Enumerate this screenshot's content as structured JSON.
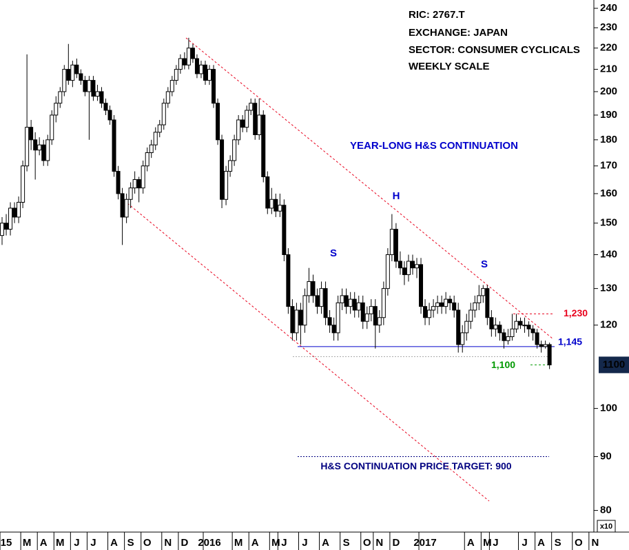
{
  "chart_data": {
    "type": "candlestick",
    "notes": [
      "RIC: 2767.T",
      "EXCHANGE: JAPAN",
      "SECTOR: CONSUMER CYCLICALS",
      "WEEKLY SCALE"
    ],
    "pattern_label": "YEAR-LONG H&S CONTINUATION",
    "head_label": "H",
    "shoulder_labels": [
      "S",
      "S"
    ],
    "scale_label": "x10",
    "log_scale": true,
    "ylim": [
      76.3,
      244.4
    ],
    "yticks": [
      80,
      90,
      100,
      120,
      130,
      140,
      150,
      160,
      170,
      180,
      190,
      200,
      210,
      220,
      230,
      240
    ],
    "last_price": {
      "value": 110,
      "label": "1100"
    },
    "levels": [
      {
        "value": 123,
        "label": "1,230",
        "color": "#e8001c"
      },
      {
        "value": 114.5,
        "label": "1,145",
        "color": "#0000cc"
      },
      {
        "value": 112,
        "color": "#aaaaaa"
      },
      {
        "value": 110,
        "label": "1,100",
        "color": "#009900"
      },
      {
        "value": 90,
        "label": "H&S CONTINUATION PRICE TARGET: 900",
        "color": "#000080"
      }
    ],
    "categories": [
      null,
      "15",
      null,
      null,
      null,
      null,
      "M",
      null,
      null,
      null,
      "A",
      null,
      null,
      null,
      "M",
      null,
      null,
      null,
      "J",
      null,
      null,
      null,
      "J",
      null,
      null,
      null,
      null,
      "A",
      null,
      null,
      null,
      "S",
      null,
      null,
      null,
      "O",
      null,
      null,
      null,
      null,
      "N",
      null,
      null,
      null,
      "D",
      null,
      null,
      null,
      null,
      null,
      "2016",
      null,
      null,
      null,
      null,
      null,
      null,
      "M",
      null,
      null,
      null,
      "A",
      null,
      null,
      null,
      null,
      "M",
      null,
      "J",
      null,
      null,
      null,
      null,
      "J",
      null,
      null,
      null,
      null,
      "A",
      null,
      null,
      null,
      null,
      "S",
      null,
      null,
      null,
      null,
      "O",
      null,
      null,
      "N",
      null,
      null,
      null,
      "D",
      null,
      null,
      null,
      null,
      null,
      null,
      "2017",
      null,
      null,
      null,
      null,
      null,
      null,
      null,
      null,
      null,
      null,
      "A",
      null,
      null,
      null,
      "M",
      null,
      "J",
      null,
      null,
      null,
      null,
      null,
      null,
      "J",
      null,
      null,
      null,
      "A",
      null,
      null,
      null,
      "S",
      null,
      null,
      null,
      null,
      "O",
      null,
      null,
      null,
      "N"
    ],
    "ohlc": [
      [
        146,
        152,
        143,
        150
      ],
      [
        150,
        153,
        146,
        148
      ],
      [
        148,
        157,
        146,
        155
      ],
      [
        155,
        157,
        150,
        152
      ],
      [
        152,
        159,
        150,
        157
      ],
      [
        157,
        172,
        155,
        170
      ],
      [
        170,
        217,
        168,
        185
      ],
      [
        185,
        188,
        176,
        180
      ],
      [
        180,
        183,
        165,
        176
      ],
      [
        176,
        181,
        174,
        178
      ],
      [
        178,
        180,
        170,
        172
      ],
      [
        172,
        182,
        170,
        180
      ],
      [
        180,
        192,
        178,
        190
      ],
      [
        190,
        198,
        187,
        195
      ],
      [
        195,
        202,
        193,
        200
      ],
      [
        200,
        212,
        198,
        210
      ],
      [
        210,
        222,
        203,
        205
      ],
      [
        205,
        214,
        202,
        212
      ],
      [
        212,
        215,
        206,
        208
      ],
      [
        208,
        210,
        203,
        205
      ],
      [
        205,
        207,
        198,
        200
      ],
      [
        200,
        207,
        180,
        205
      ],
      [
        205,
        207,
        196,
        198
      ],
      [
        198,
        203,
        196,
        200
      ],
      [
        200,
        202,
        193,
        195
      ],
      [
        195,
        197,
        190,
        192
      ],
      [
        192,
        194,
        186,
        188
      ],
      [
        188,
        190,
        166,
        168
      ],
      [
        168,
        170,
        158,
        160
      ],
      [
        160,
        162,
        143,
        152
      ],
      [
        152,
        160,
        150,
        158
      ],
      [
        158,
        164,
        155,
        162
      ],
      [
        162,
        168,
        160,
        165
      ],
      [
        165,
        166,
        157,
        162
      ],
      [
        162,
        172,
        160,
        170
      ],
      [
        170,
        177,
        168,
        175
      ],
      [
        175,
        180,
        173,
        178
      ],
      [
        178,
        185,
        176,
        183
      ],
      [
        183,
        188,
        181,
        186
      ],
      [
        186,
        197,
        184,
        195
      ],
      [
        195,
        202,
        193,
        200
      ],
      [
        200,
        207,
        198,
        205
      ],
      [
        205,
        212,
        203,
        210
      ],
      [
        210,
        217,
        208,
        215
      ],
      [
        215,
        218,
        210,
        212
      ],
      [
        212,
        225,
        210,
        220
      ],
      [
        220,
        222,
        213,
        215
      ],
      [
        215,
        217,
        206,
        208
      ],
      [
        208,
        214,
        206,
        212
      ],
      [
        212,
        214,
        203,
        205
      ],
      [
        205,
        212,
        203,
        210
      ],
      [
        210,
        212,
        193,
        195
      ],
      [
        195,
        197,
        178,
        180
      ],
      [
        180,
        182,
        155,
        158
      ],
      [
        158,
        170,
        156,
        168
      ],
      [
        168,
        174,
        166,
        172
      ],
      [
        172,
        182,
        170,
        180
      ],
      [
        180,
        190,
        178,
        188
      ],
      [
        188,
        190,
        183,
        185
      ],
      [
        185,
        194,
        183,
        192
      ],
      [
        192,
        197,
        190,
        195
      ],
      [
        195,
        197,
        180,
        182
      ],
      [
        182,
        197,
        180,
        190
      ],
      [
        190,
        192,
        164,
        166
      ],
      [
        166,
        168,
        153,
        155
      ],
      [
        155,
        162,
        153,
        158
      ],
      [
        158,
        160,
        152,
        154
      ],
      [
        154,
        160,
        152,
        156
      ],
      [
        156,
        158,
        138,
        140
      ],
      [
        140,
        142,
        123,
        125
      ],
      [
        125,
        127,
        116,
        118
      ],
      [
        118,
        126,
        116,
        124
      ],
      [
        124,
        126,
        115,
        120
      ],
      [
        120,
        130,
        118,
        128
      ],
      [
        128,
        136,
        126,
        132
      ],
      [
        132,
        134,
        126,
        128
      ],
      [
        128,
        130,
        123,
        125
      ],
      [
        125,
        132,
        123,
        130
      ],
      [
        130,
        132,
        120,
        122
      ],
      [
        122,
        124,
        118,
        120
      ],
      [
        120,
        122,
        116,
        118
      ],
      [
        118,
        128,
        116,
        126
      ],
      [
        126,
        130,
        124,
        128
      ],
      [
        128,
        130,
        123,
        125
      ],
      [
        125,
        129,
        123,
        127
      ],
      [
        127,
        129,
        122,
        124
      ],
      [
        124,
        128,
        122,
        126
      ],
      [
        126,
        128,
        119,
        121
      ],
      [
        121,
        125,
        119,
        123
      ],
      [
        123,
        127,
        121,
        125
      ],
      [
        125,
        127,
        114,
        120
      ],
      [
        120,
        124,
        118,
        122
      ],
      [
        122,
        132,
        120,
        130
      ],
      [
        130,
        142,
        128,
        140
      ],
      [
        140,
        153,
        138,
        148
      ],
      [
        148,
        150,
        136,
        138
      ],
      [
        138,
        141,
        134,
        136
      ],
      [
        136,
        138,
        131,
        134
      ],
      [
        134,
        140,
        132,
        138
      ],
      [
        138,
        140,
        134,
        136
      ],
      [
        136,
        139,
        133,
        137
      ],
      [
        137,
        139,
        123,
        125
      ],
      [
        125,
        127,
        120,
        122
      ],
      [
        122,
        126,
        120,
        124
      ],
      [
        124,
        127,
        122,
        125
      ],
      [
        125,
        128,
        123,
        126
      ],
      [
        126,
        128,
        123,
        125
      ],
      [
        125,
        129,
        123,
        127
      ],
      [
        127,
        128,
        124,
        126
      ],
      [
        126,
        128,
        122,
        124
      ],
      [
        124,
        126,
        113,
        115
      ],
      [
        115,
        120,
        113,
        118
      ],
      [
        118,
        123,
        116,
        121
      ],
      [
        121,
        126,
        119,
        124
      ],
      [
        124,
        128,
        122,
        126
      ],
      [
        126,
        131,
        124,
        128
      ],
      [
        128,
        131,
        126,
        130
      ],
      [
        130,
        131,
        120,
        122
      ],
      [
        122,
        124,
        117,
        119
      ],
      [
        119,
        122,
        117,
        120
      ],
      [
        120,
        121,
        116,
        118
      ],
      [
        118,
        119,
        114,
        116
      ],
      [
        116,
        119,
        115,
        117
      ],
      [
        117,
        123,
        116,
        119
      ],
      [
        119,
        123,
        118,
        121
      ],
      [
        121,
        122,
        119,
        120
      ],
      [
        120,
        122,
        118,
        120
      ],
      [
        120,
        121,
        117,
        119
      ],
      [
        119,
        120,
        116,
        118
      ],
      [
        118,
        119,
        114,
        115
      ],
      [
        115,
        116,
        113,
        114.5
      ],
      [
        114.5,
        116,
        114,
        115
      ],
      [
        115,
        115.5,
        109,
        110
      ],
      null,
      null,
      null,
      null,
      null,
      null,
      null,
      null,
      null,
      null,
      null
    ]
  }
}
